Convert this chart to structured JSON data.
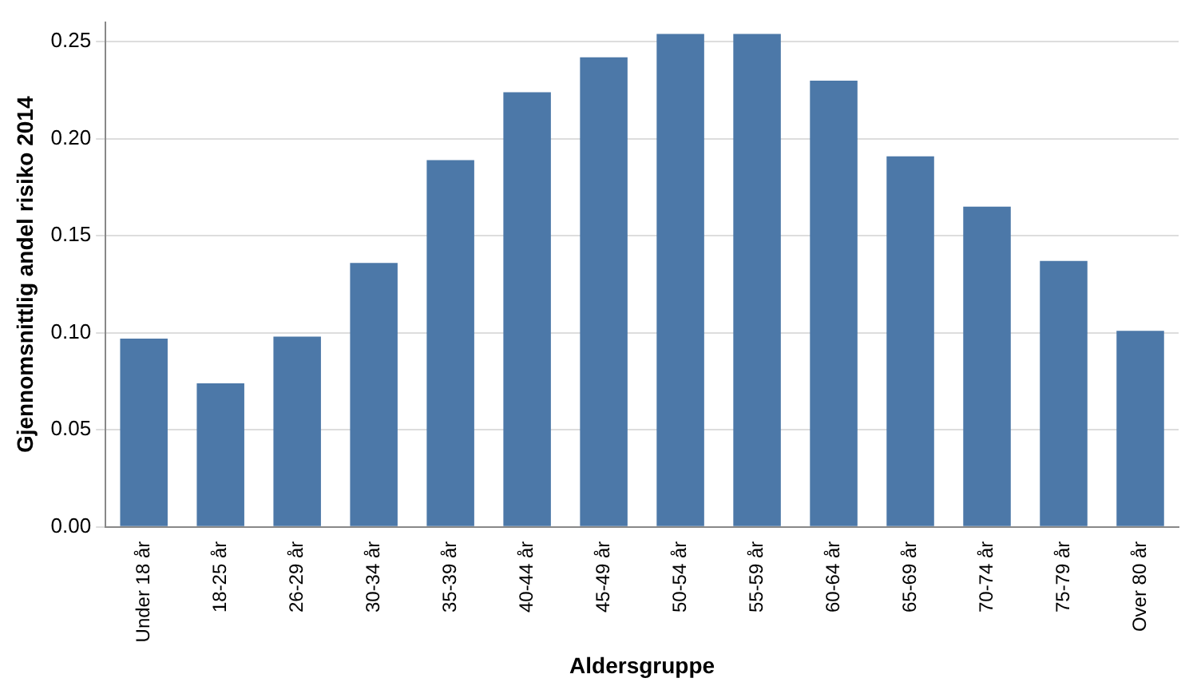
{
  "chart_data": {
    "type": "bar",
    "xlabel": "Aldersgruppe",
    "ylabel": "Gjennomsnittlig andel risiko 2014",
    "categories": [
      "Under 18 år",
      "18-25 år",
      "26-29 år",
      "30-34 år",
      "35-39 år",
      "40-44 år",
      "45-49 år",
      "50-54 år",
      "55-59 år",
      "60-64 år",
      "65-69 år",
      "70-74 år",
      "75-79 år",
      "Over 80 år"
    ],
    "values": [
      0.097,
      0.074,
      0.098,
      0.136,
      0.189,
      0.224,
      0.242,
      0.254,
      0.254,
      0.23,
      0.191,
      0.165,
      0.137,
      0.101
    ],
    "color": "#4c78a8",
    "ylim": [
      0,
      0.26
    ],
    "yticks": [
      {
        "value": 0,
        "label": "0.00"
      },
      {
        "value": 0.05,
        "label": "0.05"
      },
      {
        "value": 0.1,
        "label": "0.10"
      },
      {
        "value": 0.15,
        "label": "0.15"
      },
      {
        "value": 0.2,
        "label": "0.20"
      },
      {
        "value": 0.25,
        "label": "0.25"
      }
    ],
    "grid": "y",
    "legend": false
  }
}
